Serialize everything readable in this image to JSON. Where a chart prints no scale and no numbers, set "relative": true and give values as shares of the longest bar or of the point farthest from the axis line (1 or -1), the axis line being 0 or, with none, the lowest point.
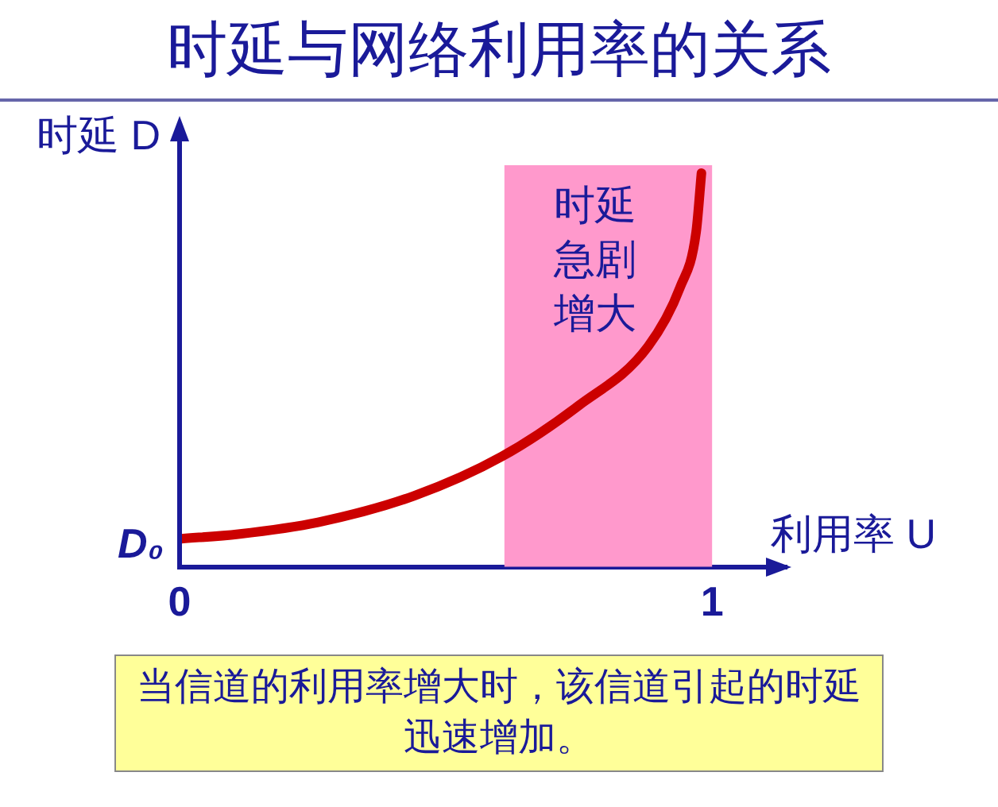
{
  "chart_data": {
    "type": "line",
    "title": "时延与网络利用率的关系",
    "xlabel": "利用率 U",
    "ylabel": "时延 D",
    "relative": true,
    "x": [
      0,
      0.11,
      0.26,
      0.44,
      0.605,
      0.75,
      0.88,
      0.94,
      0.97,
      0.98
    ],
    "series": [
      {
        "color": "#cc0000",
        "values": [
          0.071,
          0.083,
          0.113,
          0.18,
          0.28,
          0.41,
          0.56,
          0.71,
          0.85,
          1.0
        ]
      }
    ],
    "xlim": [
      0,
      1.14
    ],
    "xticks": [
      0,
      1
    ],
    "grid": false,
    "legend": false,
    "marker": "none",
    "line_style": "solid",
    "bands": [
      {
        "axis": "x",
        "from": 0.61,
        "to": 1,
        "label": "时延急剧增大",
        "color": "#ff99cc"
      }
    ],
    "annotations": [
      {
        "text": "D₀",
        "x": 0,
        "y": 0.071
      },
      "当信道的利用率增大时，该信道引起的时延迅速增加。"
    ]
  }
}
